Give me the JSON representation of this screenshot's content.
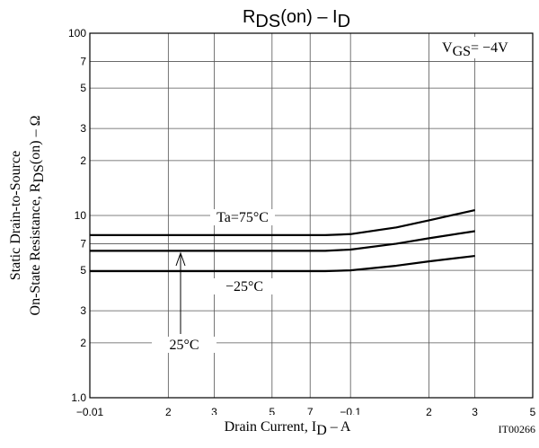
{
  "chart_data": {
    "type": "line",
    "title": [
      "R",
      "DS",
      "(on)  –  I",
      "D"
    ],
    "x_label": [
      "Drain Current, I",
      "D",
      "  –  A"
    ],
    "y_label": [
      "Static Drain-to-Source",
      [
        "On-State Resistance, R",
        "DS",
        "(on)  –  Ω"
      ]
    ],
    "annotation": [
      "V",
      "GS",
      "= −4V"
    ],
    "figure_code": "IT00266",
    "log_x": true,
    "log_y": true,
    "grid": true,
    "xlim": [
      -0.01,
      -0.5
    ],
    "ylim": [
      1,
      100
    ],
    "xticks": [
      {
        "value": -0.01,
        "label": "−0.01"
      },
      {
        "value": -0.02,
        "label": "2"
      },
      {
        "value": -0.03,
        "label": "3"
      },
      {
        "value": -0.05,
        "label": "5"
      },
      {
        "value": -0.07,
        "label": "7"
      },
      {
        "value": -0.1,
        "label": "−0.1"
      },
      {
        "value": -0.2,
        "label": "2"
      },
      {
        "value": -0.3,
        "label": "3"
      },
      {
        "value": -0.5,
        "label": "5"
      }
    ],
    "yticks": [
      {
        "value": 1,
        "label": "1.0"
      },
      2,
      3,
      5,
      7,
      10,
      {
        "value": 20,
        "label": "2"
      },
      {
        "value": 30,
        "label": "3"
      },
      {
        "value": 50,
        "label": "5"
      },
      {
        "value": 70,
        "label": "7"
      },
      100
    ],
    "x": [
      -0.01,
      -0.02,
      -0.05,
      -0.08,
      -0.1,
      -0.15,
      -0.2,
      -0.3
    ],
    "series": [
      {
        "name": "Ta=75°C",
        "color": "#000000",
        "values": [
          7.8,
          7.8,
          7.8,
          7.8,
          7.9,
          8.6,
          9.4,
          10.7
        ]
      },
      {
        "name": "25°C",
        "color": "#000000",
        "values": [
          6.4,
          6.4,
          6.4,
          6.4,
          6.5,
          7.0,
          7.5,
          8.2
        ]
      },
      {
        "name": "−25°C",
        "color": "#000000",
        "values": [
          4.95,
          4.95,
          4.95,
          4.95,
          5.0,
          5.3,
          5.6,
          6.0
        ]
      }
    ]
  }
}
